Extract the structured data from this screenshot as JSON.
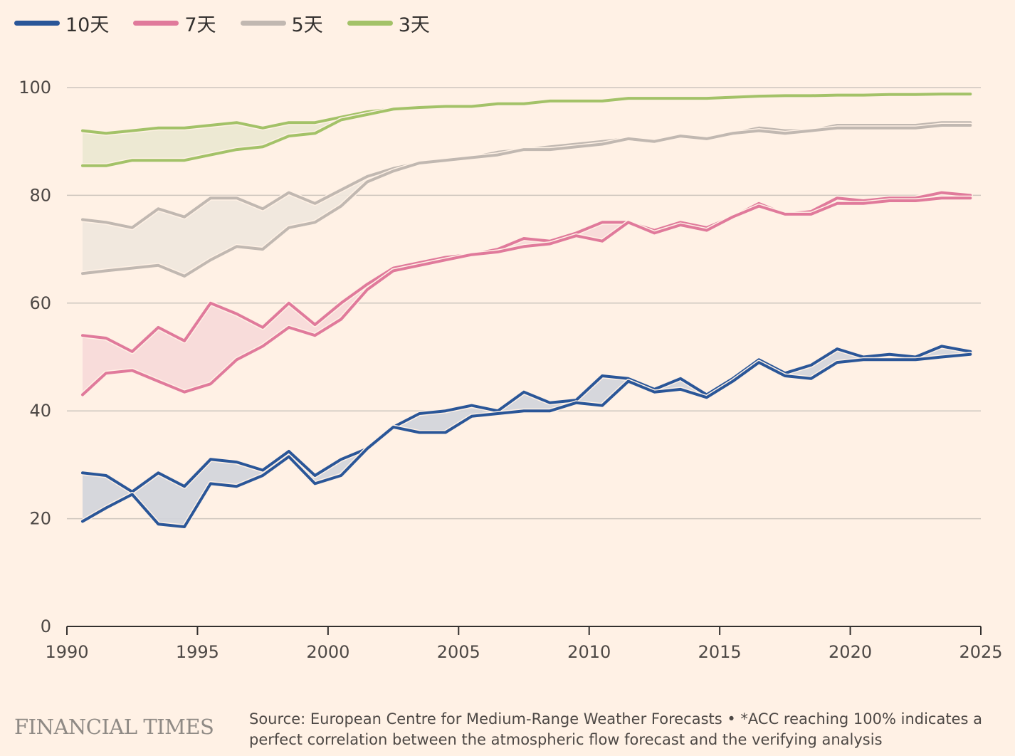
{
  "legend": [
    {
      "label": "10天",
      "color": "#2A5698"
    },
    {
      "label": "7天",
      "color": "#E07A9B"
    },
    {
      "label": "5天",
      "color": "#C1B8B1"
    },
    {
      "label": "3天",
      "color": "#A3C268"
    }
  ],
  "footer": {
    "logo": "FINANCIAL TIMES",
    "source": "Source: European Centre for Medium-Range Weather Forecasts • *ACC reaching 100% indicates a perfect correlation between the atmospheric flow forecast and the verifying analysis"
  },
  "chart_data": {
    "type": "line",
    "title": "",
    "xlabel": "",
    "ylabel": "",
    "xlim": [
      1990,
      2025
    ],
    "ylim": [
      0,
      100
    ],
    "x_ticks": [
      "1990",
      "1995",
      "2000",
      "2005",
      "2010",
      "2015",
      "2020",
      "2025"
    ],
    "y_ticks": [
      "0",
      "20",
      "40",
      "60",
      "80",
      "100"
    ],
    "grid": true,
    "legend_position": "top-left",
    "x": [
      1990.6,
      1991.5,
      1992.5,
      1993.5,
      1994.5,
      1995.5,
      1996.5,
      1997.5,
      1998.5,
      1999.5,
      2000.5,
      2001.5,
      2002.5,
      2003.5,
      2004.5,
      2005.5,
      2006.5,
      2007.5,
      2008.5,
      2009.5,
      2010.5,
      2011.5,
      2012.5,
      2013.5,
      2014.5,
      2015.5,
      2016.5,
      2017.5,
      2018.5,
      2019.5,
      2020.5,
      2021.5,
      2022.5,
      2023.5,
      2024.6
    ],
    "series": [
      {
        "name": "10天",
        "color": "#2A5698",
        "fill": "#D2D4DA",
        "upper": [
          28.5,
          28,
          25,
          28.5,
          26,
          31,
          30.5,
          29,
          32.5,
          28,
          31,
          33,
          37,
          39.5,
          40,
          41,
          40,
          43.5,
          41.5,
          42,
          46.5,
          46,
          44,
          46,
          43,
          46,
          49.5,
          47,
          48.5,
          51.5,
          50,
          50.5,
          50,
          52,
          51
        ],
        "lower": [
          19.5,
          22,
          24.5,
          19,
          18.5,
          26.5,
          26,
          28,
          31.5,
          26.5,
          28,
          33,
          37,
          36,
          36,
          39,
          39.5,
          40,
          40,
          41.5,
          41,
          45.5,
          43.5,
          44,
          42.5,
          45.5,
          49,
          46.5,
          46,
          49,
          49.5,
          49.5,
          49.5,
          50,
          50.5
        ]
      },
      {
        "name": "7天",
        "color": "#E07A9B",
        "fill": "#F7D9D8",
        "upper": [
          54,
          53.5,
          51,
          55.5,
          53,
          60,
          58,
          55.5,
          60,
          56,
          60,
          63.5,
          66.5,
          67.5,
          68.5,
          69,
          70,
          72,
          71.5,
          73,
          75,
          75,
          73.5,
          75,
          74,
          76,
          78.5,
          76.5,
          77,
          79.5,
          79,
          79.5,
          79.5,
          80.5,
          80
        ],
        "lower": [
          43,
          47,
          47.5,
          45.5,
          43.5,
          45,
          49.5,
          52,
          55.5,
          54,
          57,
          62.5,
          66,
          67,
          68,
          69,
          69.5,
          70.5,
          71,
          72.5,
          71.5,
          75,
          73,
          74.5,
          73.5,
          76,
          78,
          76.5,
          76.5,
          78.5,
          78.5,
          79,
          79,
          79.5,
          79.5
        ]
      },
      {
        "name": "5天",
        "color": "#C1B8B1",
        "fill": "#F0E7DD",
        "upper": [
          75.5,
          75,
          74,
          77.5,
          76,
          79.5,
          79.5,
          77.5,
          80.5,
          78.5,
          81,
          83.5,
          85,
          86,
          86.5,
          87,
          88,
          88.5,
          89,
          89.5,
          90,
          90.5,
          90,
          91,
          90.5,
          91.5,
          92.5,
          92,
          92,
          93,
          93,
          93,
          93,
          93.5,
          93.5
        ],
        "lower": [
          65.5,
          66,
          66.5,
          67,
          65,
          68,
          70.5,
          70,
          74,
          75,
          78,
          82.5,
          84.5,
          86,
          86.5,
          87,
          87.5,
          88.5,
          88.5,
          89,
          89.5,
          90.5,
          90,
          91,
          90.5,
          91.5,
          92,
          91.5,
          92,
          92.5,
          92.5,
          92.5,
          92.5,
          93,
          93
        ]
      },
      {
        "name": "3天",
        "color": "#A3C268",
        "fill": "#EBE8D0",
        "upper": [
          92,
          91.5,
          92,
          92.5,
          92.5,
          93,
          93.5,
          92.5,
          93.5,
          93.5,
          94.5,
          95.5,
          96,
          96.5,
          96.5,
          96.5,
          97,
          97,
          97.5,
          97.5,
          97.5,
          98,
          98,
          98,
          98,
          98.3,
          98.5,
          98.5,
          98.5,
          98.6,
          98.6,
          98.7,
          98.7,
          98.8,
          98.8
        ],
        "lower": [
          85.5,
          85.5,
          86.5,
          86.5,
          86.5,
          87.5,
          88.5,
          89,
          91,
          91.5,
          94,
          95,
          96,
          96.3,
          96.5,
          96.5,
          97,
          97,
          97.5,
          97.5,
          97.5,
          98,
          98,
          98,
          98,
          98.2,
          98.4,
          98.5,
          98.5,
          98.6,
          98.6,
          98.7,
          98.7,
          98.8,
          98.8
        ]
      }
    ]
  }
}
